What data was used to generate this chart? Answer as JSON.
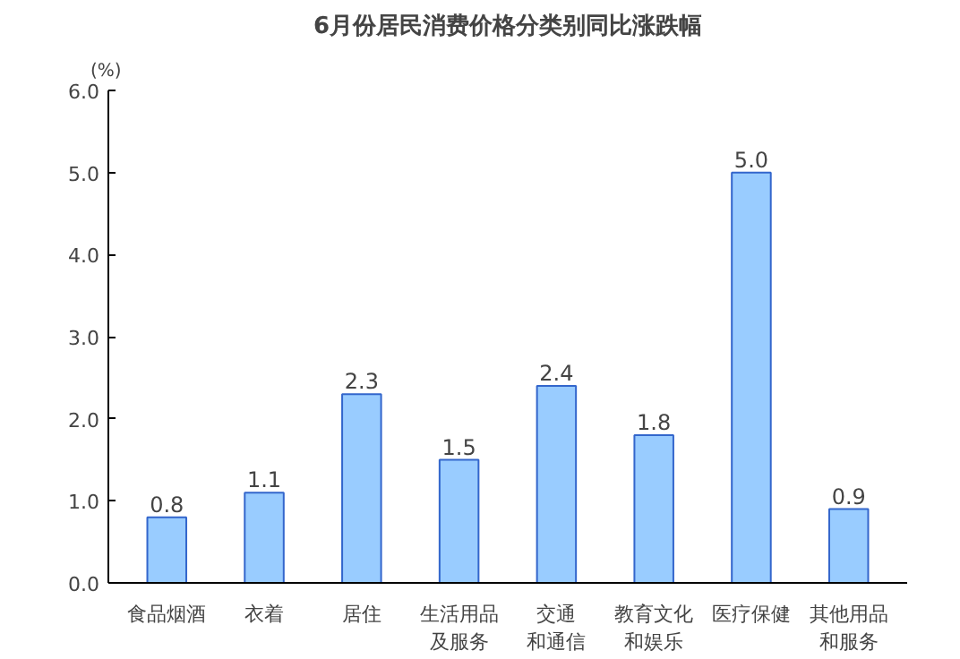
{
  "chart_data": {
    "type": "bar",
    "title": "6月份居民消费价格分类别同比涨跌幅",
    "ylabel": "(%)",
    "categories": [
      "食品烟酒",
      "衣着",
      "居住",
      "生活用品及服务",
      "交通和通信",
      "教育文化和娱乐",
      "医疗保健",
      "其他用品和服务"
    ],
    "values": [
      0.8,
      1.1,
      2.3,
      1.5,
      2.4,
      1.8,
      5.0,
      0.9
    ],
    "value_labels": [
      "0.8",
      "1.1",
      "2.3",
      "1.5",
      "2.4",
      "1.8",
      "5.0",
      "0.9"
    ],
    "color": "#99ccff",
    "ylim": [
      0,
      6
    ],
    "yticks": [
      {
        "value": 0,
        "label": "0.0"
      },
      {
        "value": 1,
        "label": "1.0"
      },
      {
        "value": 2,
        "label": "2.0"
      },
      {
        "value": 3,
        "label": "3.0"
      },
      {
        "value": 4,
        "label": "4.0"
      },
      {
        "value": 5,
        "label": "5.0"
      },
      {
        "value": 6,
        "label": "6.0"
      }
    ]
  }
}
